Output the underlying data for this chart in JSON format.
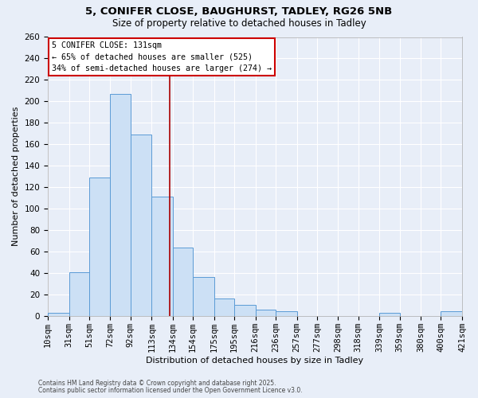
{
  "title_line1": "5, CONIFER CLOSE, BAUGHURST, TADLEY, RG26 5NB",
  "title_line2": "Size of property relative to detached houses in Tadley",
  "xlabel": "Distribution of detached houses by size in Tadley",
  "ylabel": "Number of detached properties",
  "bin_edges": [
    10,
    31,
    51,
    72,
    92,
    113,
    134,
    154,
    175,
    195,
    216,
    236,
    257,
    277,
    298,
    318,
    339,
    359,
    380,
    400,
    421
  ],
  "counts": [
    3,
    41,
    129,
    207,
    169,
    111,
    64,
    36,
    16,
    10,
    6,
    4,
    0,
    0,
    0,
    0,
    3,
    0,
    0,
    4
  ],
  "bar_facecolor": "#cce0f5",
  "bar_edgecolor": "#5b9bd5",
  "property_size": 131,
  "vline_color": "#aa0000",
  "annotation_text": "5 CONIFER CLOSE: 131sqm\n← 65% of detached houses are smaller (525)\n34% of semi-detached houses are larger (274) →",
  "ylim": [
    0,
    260
  ],
  "yticks": [
    0,
    20,
    40,
    60,
    80,
    100,
    120,
    140,
    160,
    180,
    200,
    220,
    240,
    260
  ],
  "tick_labels": [
    "10sqm",
    "31sqm",
    "51sqm",
    "72sqm",
    "92sqm",
    "113sqm",
    "134sqm",
    "154sqm",
    "175sqm",
    "195sqm",
    "216sqm",
    "236sqm",
    "257sqm",
    "277sqm",
    "298sqm",
    "318sqm",
    "339sqm",
    "359sqm",
    "380sqm",
    "400sqm",
    "421sqm"
  ],
  "fig_background_color": "#e8eef8",
  "plot_background_color": "#e8eef8",
  "grid_color": "#ffffff",
  "footer_line1": "Contains HM Land Registry data © Crown copyright and database right 2025.",
  "footer_line2": "Contains public sector information licensed under the Open Government Licence v3.0."
}
